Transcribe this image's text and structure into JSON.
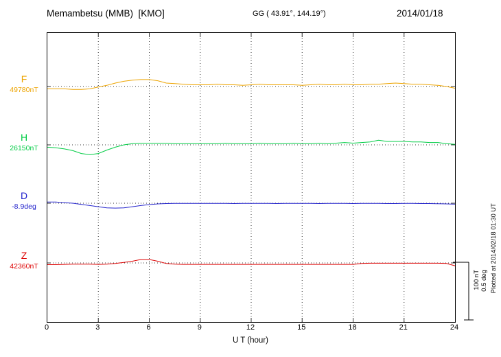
{
  "header": {
    "station": "Memambetsu (MMB)  [KMO]",
    "coords": "GG ( 43.91°, 144.19°)",
    "date": "2014/01/18"
  },
  "footer_note": "Plotted at 2014/02/18 01:30 UT",
  "scale_bar": {
    "label_nt": "100 nT",
    "label_deg": "0.5 deg"
  },
  "chart_data": {
    "type": "line",
    "title": "Memambetsu (MMB) [KMO] magnetogram for 2014/01/18",
    "xlabel": "U T (hour)",
    "x_range": [
      0,
      24
    ],
    "x_ticks": [
      0,
      3,
      6,
      9,
      12,
      15,
      18,
      21,
      24
    ],
    "grid": "dotted vertical lines every 3 hours; dotted horizontal baseline per component",
    "scale": {
      "nT_per_div": 100,
      "deg_per_div": 0.5
    },
    "x_hours": [
      0,
      0.5,
      1,
      1.5,
      2,
      2.5,
      3,
      3.5,
      4,
      4.5,
      5,
      5.5,
      6,
      6.5,
      7,
      7.5,
      8,
      8.5,
      9,
      9.5,
      10,
      10.5,
      11,
      11.5,
      12,
      12.5,
      13,
      13.5,
      14,
      14.5,
      15,
      15.5,
      16,
      16.5,
      17,
      17.5,
      18,
      18.5,
      19,
      19.5,
      20,
      20.5,
      21,
      21.5,
      22,
      22.5,
      23,
      23.5,
      24
    ],
    "series": [
      {
        "name": "F",
        "unit": "nT",
        "baseline_value": 49780,
        "baseline_label": "49780nT",
        "color": "#eda400",
        "offsets_from_baseline": [
          -4,
          -4,
          -4,
          -5,
          -5,
          -4,
          -1,
          2,
          6,
          9,
          11,
          12,
          12,
          10,
          6,
          5,
          4,
          3,
          3,
          3,
          4,
          3,
          3,
          2,
          3,
          4,
          3,
          3,
          3,
          3,
          2,
          3,
          4,
          3,
          3,
          4,
          3,
          3,
          4,
          4,
          5,
          6,
          5,
          4,
          4,
          3,
          2,
          0,
          -3
        ]
      },
      {
        "name": "H",
        "unit": "nT",
        "baseline_value": 26150,
        "baseline_label": "26150nT",
        "color": "#00cc44",
        "offsets_from_baseline": [
          -4,
          -5,
          -7,
          -10,
          -15,
          -17,
          -15,
          -9,
          -4,
          0,
          2,
          3,
          3,
          3,
          3,
          2,
          2,
          2,
          2,
          2,
          2,
          3,
          2,
          2,
          2,
          3,
          2,
          2,
          2,
          3,
          2,
          2,
          3,
          2,
          3,
          4,
          3,
          4,
          5,
          8,
          6,
          6,
          6,
          5,
          5,
          4,
          4,
          2,
          1
        ]
      },
      {
        "name": "D",
        "unit": "deg",
        "baseline_value": -8.9,
        "baseline_label": "-8.9deg",
        "color": "#2222cc",
        "offsets_from_baseline": [
          0.01,
          0.01,
          0.005,
          0,
          -0.01,
          -0.02,
          -0.03,
          -0.04,
          -0.042,
          -0.04,
          -0.03,
          -0.02,
          -0.012,
          -0.006,
          -0.003,
          -0.002,
          -0.002,
          -0.002,
          -0.002,
          -0.002,
          -0.002,
          -0.002,
          -0.003,
          -0.002,
          -0.002,
          -0.002,
          -0.002,
          -0.003,
          -0.002,
          -0.002,
          -0.002,
          -0.002,
          -0.003,
          -0.002,
          -0.002,
          -0.002,
          -0.003,
          -0.002,
          -0.002,
          -0.002,
          -0.003,
          -0.003,
          -0.002,
          -0.002,
          -0.003,
          -0.003,
          -0.005,
          -0.006,
          -0.008
        ]
      },
      {
        "name": "Z",
        "unit": "nT",
        "baseline_value": 42360,
        "baseline_label": "42360nT",
        "color": "#dd0000",
        "offsets_from_baseline": [
          -3,
          -3,
          -2.5,
          -2,
          -2,
          -2,
          -2.5,
          -2,
          -1,
          1,
          3,
          6,
          6,
          3,
          -1,
          -2,
          -2.5,
          -2.5,
          -2.5,
          -2.5,
          -2.5,
          -2.5,
          -2.5,
          -2.5,
          -2.5,
          -2.5,
          -2.5,
          -2.5,
          -2.5,
          -2.5,
          -2.5,
          -2.5,
          -2.5,
          -2.5,
          -2.5,
          -2.5,
          -2.5,
          -1,
          -0.5,
          -0.5,
          -0.5,
          -0.5,
          -0.5,
          -0.5,
          -0.5,
          -0.5,
          -0.5,
          -1,
          -5
        ]
      }
    ]
  }
}
